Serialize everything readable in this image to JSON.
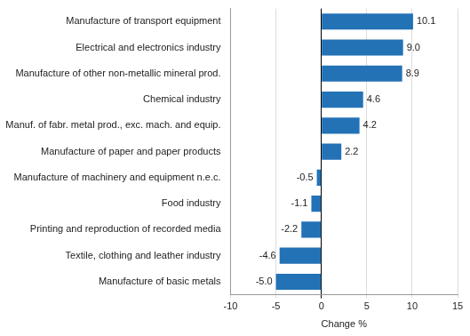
{
  "chart_data": {
    "type": "bar",
    "orientation": "horizontal",
    "categories": [
      "Manufacture of transport equipment",
      "Electrical and electronics industry",
      "Manufacture of other non-metallic mineral prod.",
      "Chemical industry",
      "Manuf. of fabr. metal prod., exc. mach. and equip.",
      "Manufacture of paper and paper products",
      "Manufacture of machinery and equipment n.e.c.",
      "Food industry",
      "Printing and reproduction of recorded media",
      "Textile, clothing and leather industry",
      "Manufacture of basic metals"
    ],
    "values": [
      10.1,
      9.0,
      8.9,
      4.6,
      4.2,
      2.2,
      -0.5,
      -1.1,
      -2.2,
      -4.6,
      -5.0
    ],
    "value_labels": [
      "10.1",
      "9.0",
      "8.9",
      "4.6",
      "4.2",
      "2.2",
      "-0.5",
      "-1.1",
      "-2.2",
      "-4.6",
      "-5.0"
    ],
    "color": "#2372b6",
    "x_label": "Change %",
    "xlim": [
      -10,
      15
    ],
    "xticks": [
      -10,
      -5,
      0,
      5,
      10,
      15
    ],
    "grid": true,
    "data_labels": true
  }
}
